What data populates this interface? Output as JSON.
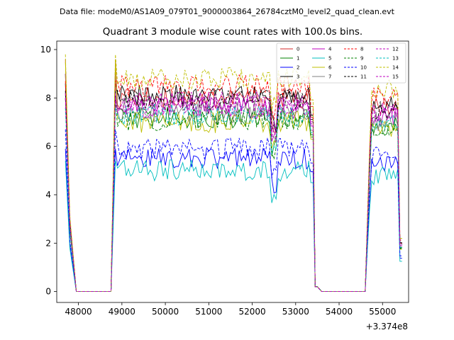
{
  "chart_data": {
    "type": "line",
    "suptitle": "Data file: modeM0/AS1A09_079T01_9000003864_26784cztM0_level2_quad_clean.evt",
    "title": "Quadrant 3 module wise count rates with 100.0s bins.",
    "xlabel": "",
    "ylabel": "",
    "x_offset_label": "+3.374e8",
    "x_range": [
      47500,
      55600
    ],
    "ylim": [
      -0.45,
      10.35
    ],
    "x_ticks": [
      48000,
      49000,
      50000,
      51000,
      52000,
      53000,
      54000,
      55000
    ],
    "x_tick_labels": [
      "48000",
      "49000",
      "50000",
      "51000",
      "52000",
      "53000",
      "54000",
      "55000"
    ],
    "y_ticks": [
      0,
      2,
      4,
      6,
      8,
      10
    ],
    "y_tick_labels": [
      "0",
      "2",
      "4",
      "6",
      "8",
      "10"
    ],
    "legend_location": "top-right",
    "segments": [
      {
        "start": 47700,
        "end": 48800
      },
      {
        "start": 48800,
        "end": 53500
      },
      {
        "start": 53500,
        "end": 55500
      }
    ],
    "series": [
      {
        "name": "0",
        "color": "#d62728",
        "dash": false,
        "level": 8.0,
        "peak": 9.6
      },
      {
        "name": "1",
        "color": "#008000",
        "dash": false,
        "level": 7.2,
        "peak": 9.0
      },
      {
        "name": "2",
        "color": "#0000ff",
        "dash": false,
        "level": 5.5,
        "peak": 5.9
      },
      {
        "name": "3",
        "color": "#000000",
        "dash": false,
        "level": 8.1,
        "peak": 8.6
      },
      {
        "name": "4",
        "color": "#bf00bf",
        "dash": false,
        "level": 7.6,
        "peak": 9.0
      },
      {
        "name": "5",
        "color": "#00bfbf",
        "dash": false,
        "level": 5.0,
        "peak": 5.4
      },
      {
        "name": "6",
        "color": "#bfbf00",
        "dash": false,
        "level": 7.0,
        "peak": 9.5
      },
      {
        "name": "7",
        "color": "#808080",
        "dash": false,
        "level": 7.4,
        "peak": 8.2
      },
      {
        "name": "8",
        "color": "#ff0000",
        "dash": true,
        "level": 8.5,
        "peak": 8.7
      },
      {
        "name": "9",
        "color": "#008000",
        "dash": true,
        "level": 7.1,
        "peak": 8.0
      },
      {
        "name": "10",
        "color": "#0000ff",
        "dash": true,
        "level": 5.9,
        "peak": 6.7
      },
      {
        "name": "11",
        "color": "#000000",
        "dash": true,
        "level": 7.9,
        "peak": 8.3
      },
      {
        "name": "12",
        "color": "#bf00bf",
        "dash": true,
        "level": 7.8,
        "peak": 8.2
      },
      {
        "name": "13",
        "color": "#00bfbf",
        "dash": true,
        "level": 7.3,
        "peak": 7.6
      },
      {
        "name": "14",
        "color": "#bfbf00",
        "dash": true,
        "level": 8.8,
        "peak": 9.8
      },
      {
        "name": "15",
        "color": "#bf00bf",
        "dash": true,
        "level": 7.7,
        "peak": 8.0
      }
    ]
  }
}
